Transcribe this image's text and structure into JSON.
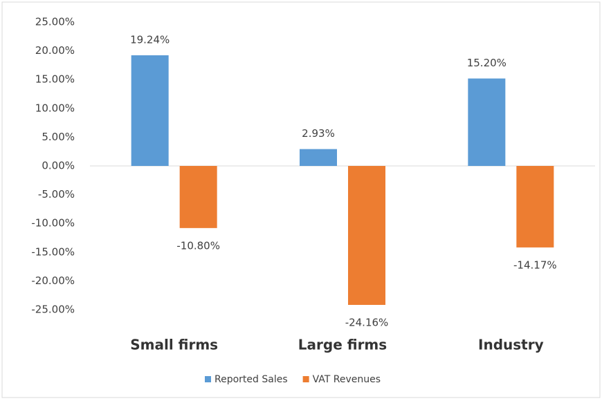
{
  "chart_data": {
    "type": "bar",
    "categories": [
      "Small firms",
      "Large firms",
      "Industry"
    ],
    "series": [
      {
        "name": "Reported Sales",
        "color": "#5b9bd5",
        "values": [
          19.24,
          2.93,
          15.2
        ],
        "value_labels": [
          "19.24%",
          "2.93%",
          "15.20%"
        ]
      },
      {
        "name": "VAT Revenues",
        "color": "#ed7d31",
        "values": [
          -10.8,
          -24.16,
          -14.17
        ],
        "value_labels": [
          "-10.80%",
          "-24.16%",
          "-14.17%"
        ]
      }
    ],
    "ylim": [
      -25,
      25
    ],
    "yticks": [
      {
        "value": 25,
        "label": "25.00%"
      },
      {
        "value": 20,
        "label": "20.00%"
      },
      {
        "value": 15,
        "label": "15.00%"
      },
      {
        "value": 10,
        "label": "10.00%"
      },
      {
        "value": 5,
        "label": "5.00%"
      },
      {
        "value": 0,
        "label": "0.00%"
      },
      {
        "value": -5,
        "label": "-5.00%"
      },
      {
        "value": -10,
        "label": "-10.00%"
      },
      {
        "value": -15,
        "label": "-15.00%"
      },
      {
        "value": -20,
        "label": "-20.00%"
      },
      {
        "value": -25,
        "label": "-25.00%"
      }
    ],
    "grid": false,
    "legend": "bottom"
  }
}
